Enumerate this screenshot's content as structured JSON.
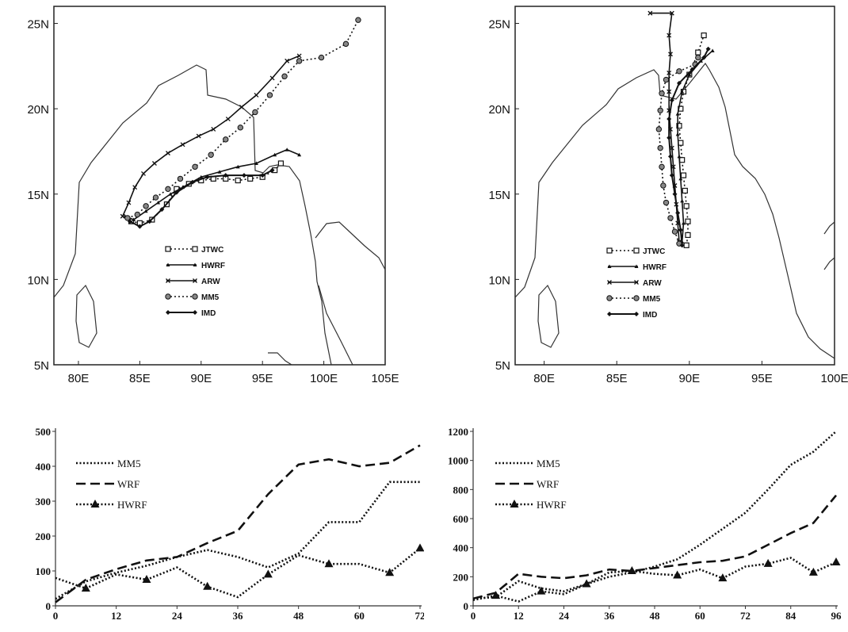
{
  "chart_data": [
    {
      "type": "scatter",
      "subtype": "track-map",
      "x_ticks": [
        "80E",
        "85E",
        "90E",
        "95E",
        "100E",
        "105E"
      ],
      "y_ticks": [
        "5N",
        "10N",
        "15N",
        "20N",
        "25N"
      ],
      "xlim": [
        78,
        105
      ],
      "ylim": [
        5,
        26
      ],
      "legend": [
        "JTWC",
        "HWRF",
        "ARW",
        "MM5",
        "IMD"
      ],
      "series": [
        {
          "name": "JTWC",
          "points": [
            [
              84.3,
              13.4
            ],
            [
              85.0,
              13.3
            ],
            [
              86.0,
              13.5
            ],
            [
              87.2,
              14.4
            ],
            [
              88.0,
              15.3
            ],
            [
              89.0,
              15.6
            ],
            [
              90.0,
              15.8
            ],
            [
              91.0,
              15.9
            ],
            [
              92.0,
              15.9
            ],
            [
              93.0,
              15.8
            ],
            [
              94.0,
              15.9
            ],
            [
              95.0,
              16.0
            ],
            [
              96.0,
              16.4
            ],
            [
              96.5,
              16.8
            ]
          ]
        },
        {
          "name": "HWRF",
          "points": [
            [
              83.8,
              13.7
            ],
            [
              84.5,
              13.5
            ],
            [
              85.5,
              14.0
            ],
            [
              86.5,
              14.5
            ],
            [
              87.5,
              15.0
            ],
            [
              88.5,
              15.4
            ],
            [
              90.0,
              16.0
            ],
            [
              91.5,
              16.3
            ],
            [
              93.0,
              16.6
            ],
            [
              94.5,
              16.8
            ],
            [
              96.0,
              17.3
            ],
            [
              97.0,
              17.6
            ],
            [
              98.0,
              17.3
            ]
          ]
        },
        {
          "name": "ARW",
          "points": [
            [
              83.6,
              13.7
            ],
            [
              84.1,
              14.5
            ],
            [
              84.6,
              15.4
            ],
            [
              85.3,
              16.2
            ],
            [
              86.2,
              16.8
            ],
            [
              87.3,
              17.4
            ],
            [
              88.5,
              17.9
            ],
            [
              89.8,
              18.4
            ],
            [
              91.0,
              18.8
            ],
            [
              92.2,
              19.4
            ],
            [
              93.3,
              20.1
            ],
            [
              94.5,
              20.8
            ],
            [
              95.8,
              21.8
            ],
            [
              97.0,
              22.8
            ],
            [
              98.0,
              23.1
            ]
          ]
        },
        {
          "name": "MM5",
          "points": [
            [
              84.0,
              13.6
            ],
            [
              84.8,
              13.8
            ],
            [
              85.5,
              14.3
            ],
            [
              86.3,
              14.8
            ],
            [
              87.3,
              15.3
            ],
            [
              88.3,
              15.9
            ],
            [
              89.5,
              16.6
            ],
            [
              90.8,
              17.3
            ],
            [
              92.0,
              18.2
            ],
            [
              93.2,
              18.9
            ],
            [
              94.4,
              19.8
            ],
            [
              95.6,
              20.8
            ],
            [
              96.8,
              21.9
            ],
            [
              98.0,
              22.8
            ],
            [
              99.8,
              23.0
            ],
            [
              101.8,
              23.8
            ],
            [
              102.8,
              25.2
            ]
          ]
        },
        {
          "name": "IMD",
          "points": [
            [
              84.2,
              13.4
            ],
            [
              85.0,
              13.1
            ],
            [
              85.8,
              13.4
            ],
            [
              86.8,
              14.1
            ],
            [
              88.0,
              15.1
            ],
            [
              89.3,
              15.7
            ],
            [
              90.5,
              16.0
            ],
            [
              92.0,
              16.1
            ],
            [
              93.5,
              16.1
            ],
            [
              95.0,
              16.1
            ],
            [
              95.8,
              16.4
            ]
          ]
        }
      ]
    },
    {
      "type": "scatter",
      "subtype": "track-map",
      "x_ticks": [
        "80E",
        "85E",
        "90E",
        "95E",
        "100E"
      ],
      "y_ticks": [
        "5N",
        "10N",
        "15N",
        "20N",
        "25N"
      ],
      "xlim": [
        78,
        100
      ],
      "ylim": [
        5,
        26
      ],
      "legend": [
        "JTWC",
        "HWRF",
        "ARW",
        "MM5",
        "IMD"
      ],
      "series": [
        {
          "name": "JTWC",
          "points": [
            [
              89.8,
              12.0
            ],
            [
              89.9,
              12.6
            ],
            [
              89.9,
              13.4
            ],
            [
              89.8,
              14.3
            ],
            [
              89.7,
              15.2
            ],
            [
              89.6,
              16.1
            ],
            [
              89.5,
              17.0
            ],
            [
              89.4,
              18.0
            ],
            [
              89.3,
              19.0
            ],
            [
              89.4,
              20.0
            ],
            [
              89.6,
              21.0
            ],
            [
              90.0,
              22.0
            ],
            [
              90.6,
              23.3
            ],
            [
              91.0,
              24.3
            ]
          ]
        },
        {
          "name": "HWRF",
          "points": [
            [
              89.5,
              12.2
            ],
            [
              89.6,
              13.3
            ],
            [
              89.5,
              14.6
            ],
            [
              89.4,
              15.9
            ],
            [
              89.3,
              17.2
            ],
            [
              89.2,
              18.5
            ],
            [
              89.2,
              19.7
            ],
            [
              89.5,
              21.0
            ],
            [
              90.0,
              22.0
            ],
            [
              90.8,
              22.8
            ],
            [
              91.6,
              23.4
            ]
          ]
        },
        {
          "name": "ARW",
          "points": [
            [
              89.3,
              12.2
            ],
            [
              89.2,
              13.3
            ],
            [
              89.1,
              14.4
            ],
            [
              89.0,
              15.5
            ],
            [
              88.9,
              16.6
            ],
            [
              88.8,
              17.7
            ],
            [
              88.7,
              18.8
            ],
            [
              88.6,
              19.9
            ],
            [
              88.6,
              21.0
            ],
            [
              88.6,
              22.1
            ],
            [
              88.7,
              23.2
            ],
            [
              88.6,
              24.3
            ],
            [
              88.8,
              25.6
            ],
            [
              87.3,
              25.6
            ]
          ]
        },
        {
          "name": "MM5",
          "points": [
            [
              89.3,
              12.1
            ],
            [
              89.0,
              12.8
            ],
            [
              88.7,
              13.6
            ],
            [
              88.4,
              14.5
            ],
            [
              88.2,
              15.5
            ],
            [
              88.1,
              16.6
            ],
            [
              88.0,
              17.7
            ],
            [
              87.9,
              18.8
            ],
            [
              88.0,
              19.9
            ],
            [
              88.1,
              20.9
            ],
            [
              88.4,
              21.7
            ],
            [
              89.3,
              22.2
            ],
            [
              90.4,
              22.6
            ],
            [
              90.6,
              23.0
            ]
          ]
        },
        {
          "name": "IMD",
          "points": [
            [
              89.5,
              12.0
            ],
            [
              89.4,
              12.9
            ],
            [
              89.2,
              13.9
            ],
            [
              89.0,
              15.0
            ],
            [
              88.8,
              16.1
            ],
            [
              88.7,
              17.2
            ],
            [
              88.6,
              18.3
            ],
            [
              88.6,
              19.4
            ],
            [
              88.8,
              20.5
            ],
            [
              89.3,
              21.5
            ],
            [
              90.2,
              22.3
            ],
            [
              91.0,
              23.0
            ],
            [
              91.3,
              23.5
            ]
          ]
        }
      ]
    },
    {
      "type": "line",
      "x_ticks": [
        0,
        12,
        24,
        36,
        48,
        60,
        72
      ],
      "y_ticks": [
        0,
        100,
        200,
        300,
        400,
        500
      ],
      "xlim": [
        0,
        72
      ],
      "ylim": [
        0,
        500
      ],
      "series": [
        {
          "name": "MM5",
          "x": [
            0,
            6,
            12,
            18,
            24,
            30,
            36,
            42,
            48,
            54,
            60,
            66,
            72
          ],
          "values": [
            20,
            70,
            95,
            115,
            140,
            160,
            140,
            110,
            150,
            240,
            240,
            355,
            355
          ]
        },
        {
          "name": "WRF",
          "x": [
            0,
            6,
            12,
            18,
            24,
            30,
            36,
            42,
            48,
            54,
            60,
            66,
            72
          ],
          "values": [
            10,
            75,
            105,
            130,
            140,
            180,
            215,
            320,
            405,
            420,
            400,
            410,
            460
          ]
        },
        {
          "name": "HWRF",
          "x": [
            0,
            6,
            12,
            18,
            24,
            30,
            36,
            42,
            48,
            54,
            60,
            66,
            72
          ],
          "values": [
            80,
            50,
            90,
            75,
            110,
            55,
            25,
            90,
            145,
            120,
            120,
            95,
            165
          ]
        }
      ]
    },
    {
      "type": "line",
      "x_ticks": [
        0,
        12,
        24,
        36,
        48,
        60,
        72,
        84,
        96
      ],
      "y_ticks": [
        0,
        200,
        400,
        600,
        800,
        1000,
        1200
      ],
      "xlim": [
        0,
        96
      ],
      "ylim": [
        0,
        1200
      ],
      "series": [
        {
          "name": "MM5",
          "x": [
            0,
            6,
            12,
            18,
            24,
            30,
            36,
            42,
            48,
            54,
            60,
            66,
            72,
            78,
            84,
            90,
            96
          ],
          "values": [
            50,
            60,
            170,
            120,
            100,
            150,
            200,
            230,
            270,
            320,
            420,
            530,
            640,
            800,
            970,
            1060,
            1200
          ]
        },
        {
          "name": "WRF",
          "x": [
            0,
            6,
            12,
            18,
            24,
            30,
            36,
            42,
            48,
            54,
            60,
            66,
            72,
            78,
            84,
            90,
            96
          ],
          "values": [
            50,
            90,
            220,
            200,
            190,
            210,
            250,
            240,
            260,
            280,
            300,
            310,
            340,
            420,
            500,
            570,
            760
          ]
        },
        {
          "name": "HWRF",
          "x": [
            0,
            6,
            12,
            18,
            24,
            30,
            36,
            42,
            48,
            54,
            60,
            66,
            72,
            78,
            84,
            90,
            96
          ],
          "values": [
            40,
            70,
            30,
            100,
            80,
            150,
            230,
            240,
            220,
            210,
            250,
            190,
            270,
            290,
            330,
            230,
            300
          ]
        }
      ]
    }
  ]
}
